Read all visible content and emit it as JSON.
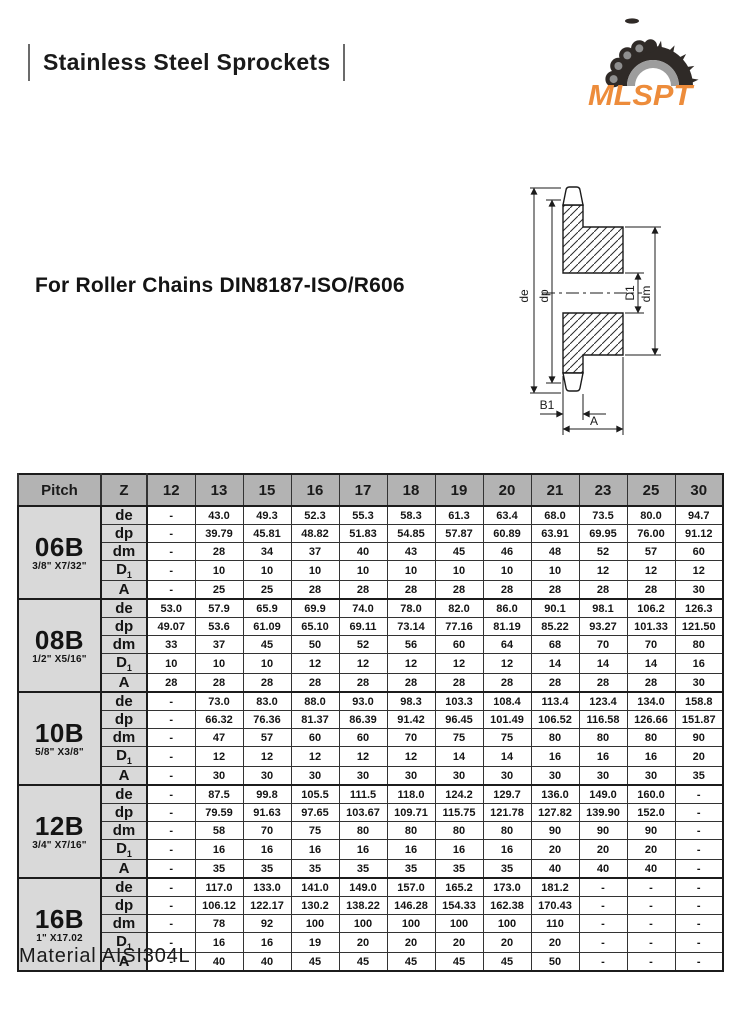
{
  "page": {
    "title": "Stainless Steel Sprockets",
    "section_heading": "For Roller Chains DIN8187-ISO/R606",
    "brand": "MLSPT",
    "material_note": "Material AISI304L"
  },
  "colors": {
    "brand_orange": "#ED8C3B",
    "table_header_gray": "#b3b3b3",
    "table_label_gray": "#d9d9d9",
    "line_black": "#1b1b1b"
  },
  "diagram": {
    "labels": {
      "outer_diameter": "de",
      "pitch_diameter": "dp",
      "bore_diameter": "D1",
      "hub_diameter": "dm",
      "tooth_width": "B1",
      "hub_width": "A"
    }
  },
  "table": {
    "corner_header": "Pitch",
    "z_header": "Z",
    "teeth_counts": [
      "12",
      "13",
      "15",
      "16",
      "17",
      "18",
      "19",
      "20",
      "21",
      "23",
      "25",
      "30"
    ],
    "blocks": [
      {
        "pitch": "06B",
        "size": "3/8\" X7/32\"",
        "rows": [
          {
            "label": "de",
            "values": [
              "-",
              "43.0",
              "49.3",
              "52.3",
              "55.3",
              "58.3",
              "61.3",
              "63.4",
              "68.0",
              "73.5",
              "80.0",
              "94.7"
            ]
          },
          {
            "label": "dp",
            "values": [
              "-",
              "39.79",
              "45.81",
              "48.82",
              "51.83",
              "54.85",
              "57.87",
              "60.89",
              "63.91",
              "69.95",
              "76.00",
              "91.12"
            ]
          },
          {
            "label": "dm",
            "values": [
              "-",
              "28",
              "34",
              "37",
              "40",
              "43",
              "45",
              "46",
              "48",
              "52",
              "57",
              "60"
            ]
          },
          {
            "label": "D1",
            "values": [
              "-",
              "10",
              "10",
              "10",
              "10",
              "10",
              "10",
              "10",
              "10",
              "12",
              "12",
              "12"
            ]
          },
          {
            "label": "A",
            "values": [
              "-",
              "25",
              "25",
              "28",
              "28",
              "28",
              "28",
              "28",
              "28",
              "28",
              "28",
              "30"
            ]
          }
        ]
      },
      {
        "pitch": "08B",
        "size": "1/2\" X5/16\"",
        "rows": [
          {
            "label": "de",
            "values": [
              "53.0",
              "57.9",
              "65.9",
              "69.9",
              "74.0",
              "78.0",
              "82.0",
              "86.0",
              "90.1",
              "98.1",
              "106.2",
              "126.3"
            ]
          },
          {
            "label": "dp",
            "values": [
              "49.07",
              "53.6",
              "61.09",
              "65.10",
              "69.11",
              "73.14",
              "77.16",
              "81.19",
              "85.22",
              "93.27",
              "101.33",
              "121.50"
            ]
          },
          {
            "label": "dm",
            "values": [
              "33",
              "37",
              "45",
              "50",
              "52",
              "56",
              "60",
              "64",
              "68",
              "70",
              "70",
              "80"
            ]
          },
          {
            "label": "D1",
            "values": [
              "10",
              "10",
              "10",
              "12",
              "12",
              "12",
              "12",
              "12",
              "14",
              "14",
              "14",
              "16"
            ]
          },
          {
            "label": "A",
            "values": [
              "28",
              "28",
              "28",
              "28",
              "28",
              "28",
              "28",
              "28",
              "28",
              "28",
              "28",
              "30"
            ]
          }
        ]
      },
      {
        "pitch": "10B",
        "size": "5/8\" X3/8\"",
        "rows": [
          {
            "label": "de",
            "values": [
              "-",
              "73.0",
              "83.0",
              "88.0",
              "93.0",
              "98.3",
              "103.3",
              "108.4",
              "113.4",
              "123.4",
              "134.0",
              "158.8"
            ]
          },
          {
            "label": "dp",
            "values": [
              "-",
              "66.32",
              "76.36",
              "81.37",
              "86.39",
              "91.42",
              "96.45",
              "101.49",
              "106.52",
              "116.58",
              "126.66",
              "151.87"
            ]
          },
          {
            "label": "dm",
            "values": [
              "-",
              "47",
              "57",
              "60",
              "60",
              "70",
              "75",
              "75",
              "80",
              "80",
              "80",
              "90"
            ]
          },
          {
            "label": "D1",
            "values": [
              "-",
              "12",
              "12",
              "12",
              "12",
              "12",
              "14",
              "14",
              "16",
              "16",
              "16",
              "20"
            ]
          },
          {
            "label": "A",
            "values": [
              "-",
              "30",
              "30",
              "30",
              "30",
              "30",
              "30",
              "30",
              "30",
              "30",
              "30",
              "35"
            ]
          }
        ]
      },
      {
        "pitch": "12B",
        "size": "3/4\" X7/16\"",
        "rows": [
          {
            "label": "de",
            "values": [
              "-",
              "87.5",
              "99.8",
              "105.5",
              "111.5",
              "118.0",
              "124.2",
              "129.7",
              "136.0",
              "149.0",
              "160.0",
              "-"
            ]
          },
          {
            "label": "dp",
            "values": [
              "-",
              "79.59",
              "91.63",
              "97.65",
              "103.67",
              "109.71",
              "115.75",
              "121.78",
              "127.82",
              "139.90",
              "152.0",
              "-"
            ]
          },
          {
            "label": "dm",
            "values": [
              "-",
              "58",
              "70",
              "75",
              "80",
              "80",
              "80",
              "80",
              "90",
              "90",
              "90",
              "-"
            ]
          },
          {
            "label": "D1",
            "values": [
              "-",
              "16",
              "16",
              "16",
              "16",
              "16",
              "16",
              "16",
              "20",
              "20",
              "20",
              "-"
            ]
          },
          {
            "label": "A",
            "values": [
              "-",
              "35",
              "35",
              "35",
              "35",
              "35",
              "35",
              "35",
              "40",
              "40",
              "40",
              "-"
            ]
          }
        ]
      },
      {
        "pitch": "16B",
        "size": "1\" X17.02",
        "rows": [
          {
            "label": "de",
            "values": [
              "-",
              "117.0",
              "133.0",
              "141.0",
              "149.0",
              "157.0",
              "165.2",
              "173.0",
              "181.2",
              "-",
              "-",
              "-"
            ]
          },
          {
            "label": "dp",
            "values": [
              "-",
              "106.12",
              "122.17",
              "130.2",
              "138.22",
              "146.28",
              "154.33",
              "162.38",
              "170.43",
              "-",
              "-",
              "-"
            ]
          },
          {
            "label": "dm",
            "values": [
              "-",
              "78",
              "92",
              "100",
              "100",
              "100",
              "100",
              "100",
              "110",
              "-",
              "-",
              "-"
            ]
          },
          {
            "label": "D1",
            "values": [
              "-",
              "16",
              "16",
              "19",
              "20",
              "20",
              "20",
              "20",
              "20",
              "-",
              "-",
              "-"
            ]
          },
          {
            "label": "A",
            "values": [
              "-",
              "40",
              "40",
              "45",
              "45",
              "45",
              "45",
              "45",
              "50",
              "-",
              "-",
              "-"
            ]
          }
        ]
      }
    ]
  }
}
